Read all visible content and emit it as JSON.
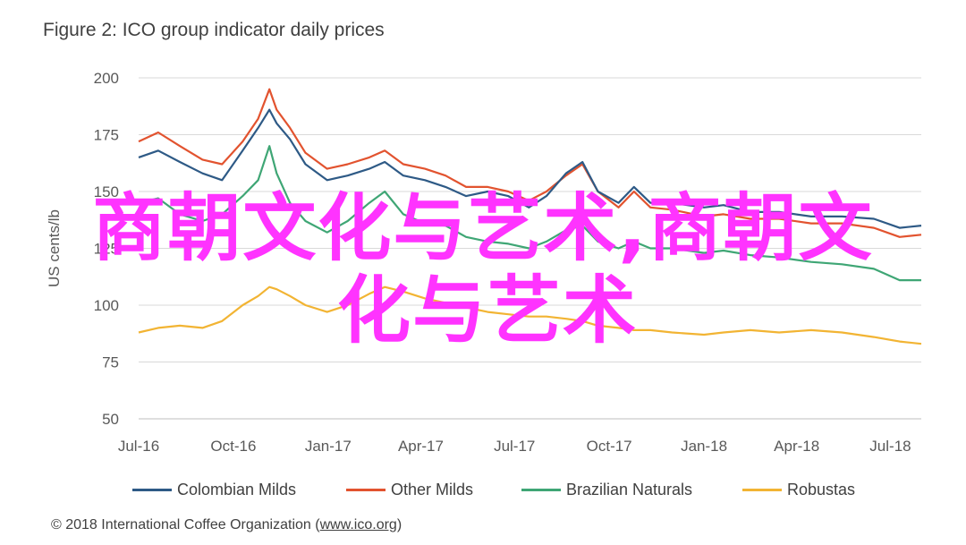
{
  "chart_data": {
    "type": "line",
    "title": "Figure 2: ICO group indicator daily prices",
    "ylabel": "US cents/lb",
    "ylim": [
      50,
      200
    ],
    "yticks": [
      50,
      75,
      100,
      125,
      150,
      175,
      200
    ],
    "x_range": [
      "2016-07-01",
      "2018-07-31"
    ],
    "xticks": [
      {
        "date": "2016-07-01",
        "label": "Jul-16"
      },
      {
        "date": "2016-10-01",
        "label": "Oct-16"
      },
      {
        "date": "2017-01-01",
        "label": "Jan-17"
      },
      {
        "date": "2017-04-01",
        "label": "Apr-17"
      },
      {
        "date": "2017-07-01",
        "label": "Jul-17"
      },
      {
        "date": "2017-10-01",
        "label": "Oct-17"
      },
      {
        "date": "2018-01-01",
        "label": "Jan-18"
      },
      {
        "date": "2018-04-01",
        "label": "Apr-18"
      },
      {
        "date": "2018-07-01",
        "label": "Jul-18"
      }
    ],
    "grid": true,
    "legend_position": "bottom",
    "series": [
      {
        "name": "Colombian Milds",
        "color": "#2e5a86",
        "points": [
          [
            "2016-07-01",
            165
          ],
          [
            "2016-07-20",
            168
          ],
          [
            "2016-08-10",
            163
          ],
          [
            "2016-09-01",
            158
          ],
          [
            "2016-09-20",
            155
          ],
          [
            "2016-10-10",
            168
          ],
          [
            "2016-10-25",
            178
          ],
          [
            "2016-11-05",
            186
          ],
          [
            "2016-11-12",
            180
          ],
          [
            "2016-11-25",
            173
          ],
          [
            "2016-12-10",
            162
          ],
          [
            "2016-12-31",
            155
          ],
          [
            "2017-01-20",
            157
          ],
          [
            "2017-02-10",
            160
          ],
          [
            "2017-02-25",
            163
          ],
          [
            "2017-03-15",
            157
          ],
          [
            "2017-04-05",
            155
          ],
          [
            "2017-04-25",
            152
          ],
          [
            "2017-05-15",
            148
          ],
          [
            "2017-06-05",
            150
          ],
          [
            "2017-06-25",
            148
          ],
          [
            "2017-07-15",
            143
          ],
          [
            "2017-08-01",
            148
          ],
          [
            "2017-08-20",
            158
          ],
          [
            "2017-09-05",
            163
          ],
          [
            "2017-09-20",
            150
          ],
          [
            "2017-10-10",
            145
          ],
          [
            "2017-10-25",
            152
          ],
          [
            "2017-11-10",
            145
          ],
          [
            "2017-12-01",
            145
          ],
          [
            "2018-01-01",
            143
          ],
          [
            "2018-01-20",
            144
          ],
          [
            "2018-02-15",
            141
          ],
          [
            "2018-03-15",
            141
          ],
          [
            "2018-04-15",
            139
          ],
          [
            "2018-05-15",
            139
          ],
          [
            "2018-06-15",
            138
          ],
          [
            "2018-07-10",
            134
          ],
          [
            "2018-07-31",
            135
          ]
        ]
      },
      {
        "name": "Other Milds",
        "color": "#e2532f",
        "points": [
          [
            "2016-07-01",
            172
          ],
          [
            "2016-07-20",
            176
          ],
          [
            "2016-08-10",
            170
          ],
          [
            "2016-09-01",
            164
          ],
          [
            "2016-09-20",
            162
          ],
          [
            "2016-10-10",
            172
          ],
          [
            "2016-10-25",
            182
          ],
          [
            "2016-11-05",
            195
          ],
          [
            "2016-11-12",
            186
          ],
          [
            "2016-11-25",
            178
          ],
          [
            "2016-12-10",
            167
          ],
          [
            "2016-12-31",
            160
          ],
          [
            "2017-01-20",
            162
          ],
          [
            "2017-02-10",
            165
          ],
          [
            "2017-02-25",
            168
          ],
          [
            "2017-03-15",
            162
          ],
          [
            "2017-04-05",
            160
          ],
          [
            "2017-04-25",
            157
          ],
          [
            "2017-05-15",
            152
          ],
          [
            "2017-06-05",
            152
          ],
          [
            "2017-06-25",
            150
          ],
          [
            "2017-07-15",
            146
          ],
          [
            "2017-08-01",
            150
          ],
          [
            "2017-08-20",
            157
          ],
          [
            "2017-09-05",
            162
          ],
          [
            "2017-09-20",
            150
          ],
          [
            "2017-10-10",
            143
          ],
          [
            "2017-10-25",
            150
          ],
          [
            "2017-11-10",
            143
          ],
          [
            "2017-12-01",
            142
          ],
          [
            "2018-01-01",
            139
          ],
          [
            "2018-01-20",
            140
          ],
          [
            "2018-02-15",
            138
          ],
          [
            "2018-03-15",
            138
          ],
          [
            "2018-04-15",
            136
          ],
          [
            "2018-05-15",
            136
          ],
          [
            "2018-06-15",
            134
          ],
          [
            "2018-07-10",
            130
          ],
          [
            "2018-07-31",
            131
          ]
        ]
      },
      {
        "name": "Brazilian Naturals",
        "color": "#3fa675",
        "points": [
          [
            "2016-07-01",
            145
          ],
          [
            "2016-07-20",
            147
          ],
          [
            "2016-08-10",
            140
          ],
          [
            "2016-09-01",
            137
          ],
          [
            "2016-09-20",
            140
          ],
          [
            "2016-10-10",
            148
          ],
          [
            "2016-10-25",
            155
          ],
          [
            "2016-11-05",
            170
          ],
          [
            "2016-11-12",
            158
          ],
          [
            "2016-11-25",
            145
          ],
          [
            "2016-12-10",
            137
          ],
          [
            "2016-12-31",
            132
          ],
          [
            "2017-01-20",
            137
          ],
          [
            "2017-02-10",
            145
          ],
          [
            "2017-02-25",
            150
          ],
          [
            "2017-03-15",
            140
          ],
          [
            "2017-04-05",
            136
          ],
          [
            "2017-04-25",
            135
          ],
          [
            "2017-05-15",
            130
          ],
          [
            "2017-06-05",
            128
          ],
          [
            "2017-06-25",
            127
          ],
          [
            "2017-07-15",
            125
          ],
          [
            "2017-08-01",
            128
          ],
          [
            "2017-08-20",
            133
          ],
          [
            "2017-09-05",
            135
          ],
          [
            "2017-09-20",
            128
          ],
          [
            "2017-10-10",
            125
          ],
          [
            "2017-10-25",
            128
          ],
          [
            "2017-11-10",
            125
          ],
          [
            "2017-12-01",
            125
          ],
          [
            "2018-01-01",
            123
          ],
          [
            "2018-01-20",
            124
          ],
          [
            "2018-02-15",
            122
          ],
          [
            "2018-03-15",
            121
          ],
          [
            "2018-04-15",
            119
          ],
          [
            "2018-05-15",
            118
          ],
          [
            "2018-06-15",
            116
          ],
          [
            "2018-07-10",
            111
          ],
          [
            "2018-07-31",
            111
          ]
        ]
      },
      {
        "name": "Robustas",
        "color": "#f2b433",
        "points": [
          [
            "2016-07-01",
            88
          ],
          [
            "2016-07-20",
            90
          ],
          [
            "2016-08-10",
            91
          ],
          [
            "2016-09-01",
            90
          ],
          [
            "2016-09-20",
            93
          ],
          [
            "2016-10-10",
            100
          ],
          [
            "2016-10-25",
            104
          ],
          [
            "2016-11-05",
            108
          ],
          [
            "2016-11-12",
            107
          ],
          [
            "2016-11-25",
            104
          ],
          [
            "2016-12-10",
            100
          ],
          [
            "2016-12-31",
            97
          ],
          [
            "2017-01-20",
            100
          ],
          [
            "2017-02-10",
            105
          ],
          [
            "2017-02-25",
            108
          ],
          [
            "2017-03-15",
            106
          ],
          [
            "2017-04-05",
            103
          ],
          [
            "2017-04-25",
            101
          ],
          [
            "2017-05-15",
            99
          ],
          [
            "2017-06-05",
            97
          ],
          [
            "2017-06-25",
            96
          ],
          [
            "2017-07-15",
            95
          ],
          [
            "2017-08-01",
            95
          ],
          [
            "2017-08-20",
            94
          ],
          [
            "2017-09-05",
            93
          ],
          [
            "2017-09-20",
            91
          ],
          [
            "2017-10-10",
            90
          ],
          [
            "2017-10-25",
            89
          ],
          [
            "2017-11-10",
            89
          ],
          [
            "2017-12-01",
            88
          ],
          [
            "2018-01-01",
            87
          ],
          [
            "2018-01-20",
            88
          ],
          [
            "2018-02-15",
            89
          ],
          [
            "2018-03-15",
            88
          ],
          [
            "2018-04-15",
            89
          ],
          [
            "2018-05-15",
            88
          ],
          [
            "2018-06-15",
            86
          ],
          [
            "2018-07-10",
            84
          ],
          [
            "2018-07-31",
            83
          ]
        ]
      }
    ]
  },
  "credit": {
    "prefix": "© 2018 International Coffee Organization (",
    "link": "www.ico.org",
    "suffix": ")"
  },
  "watermark": {
    "line1": "商朝文化与艺术,商朝文",
    "line2": "化与艺术"
  }
}
